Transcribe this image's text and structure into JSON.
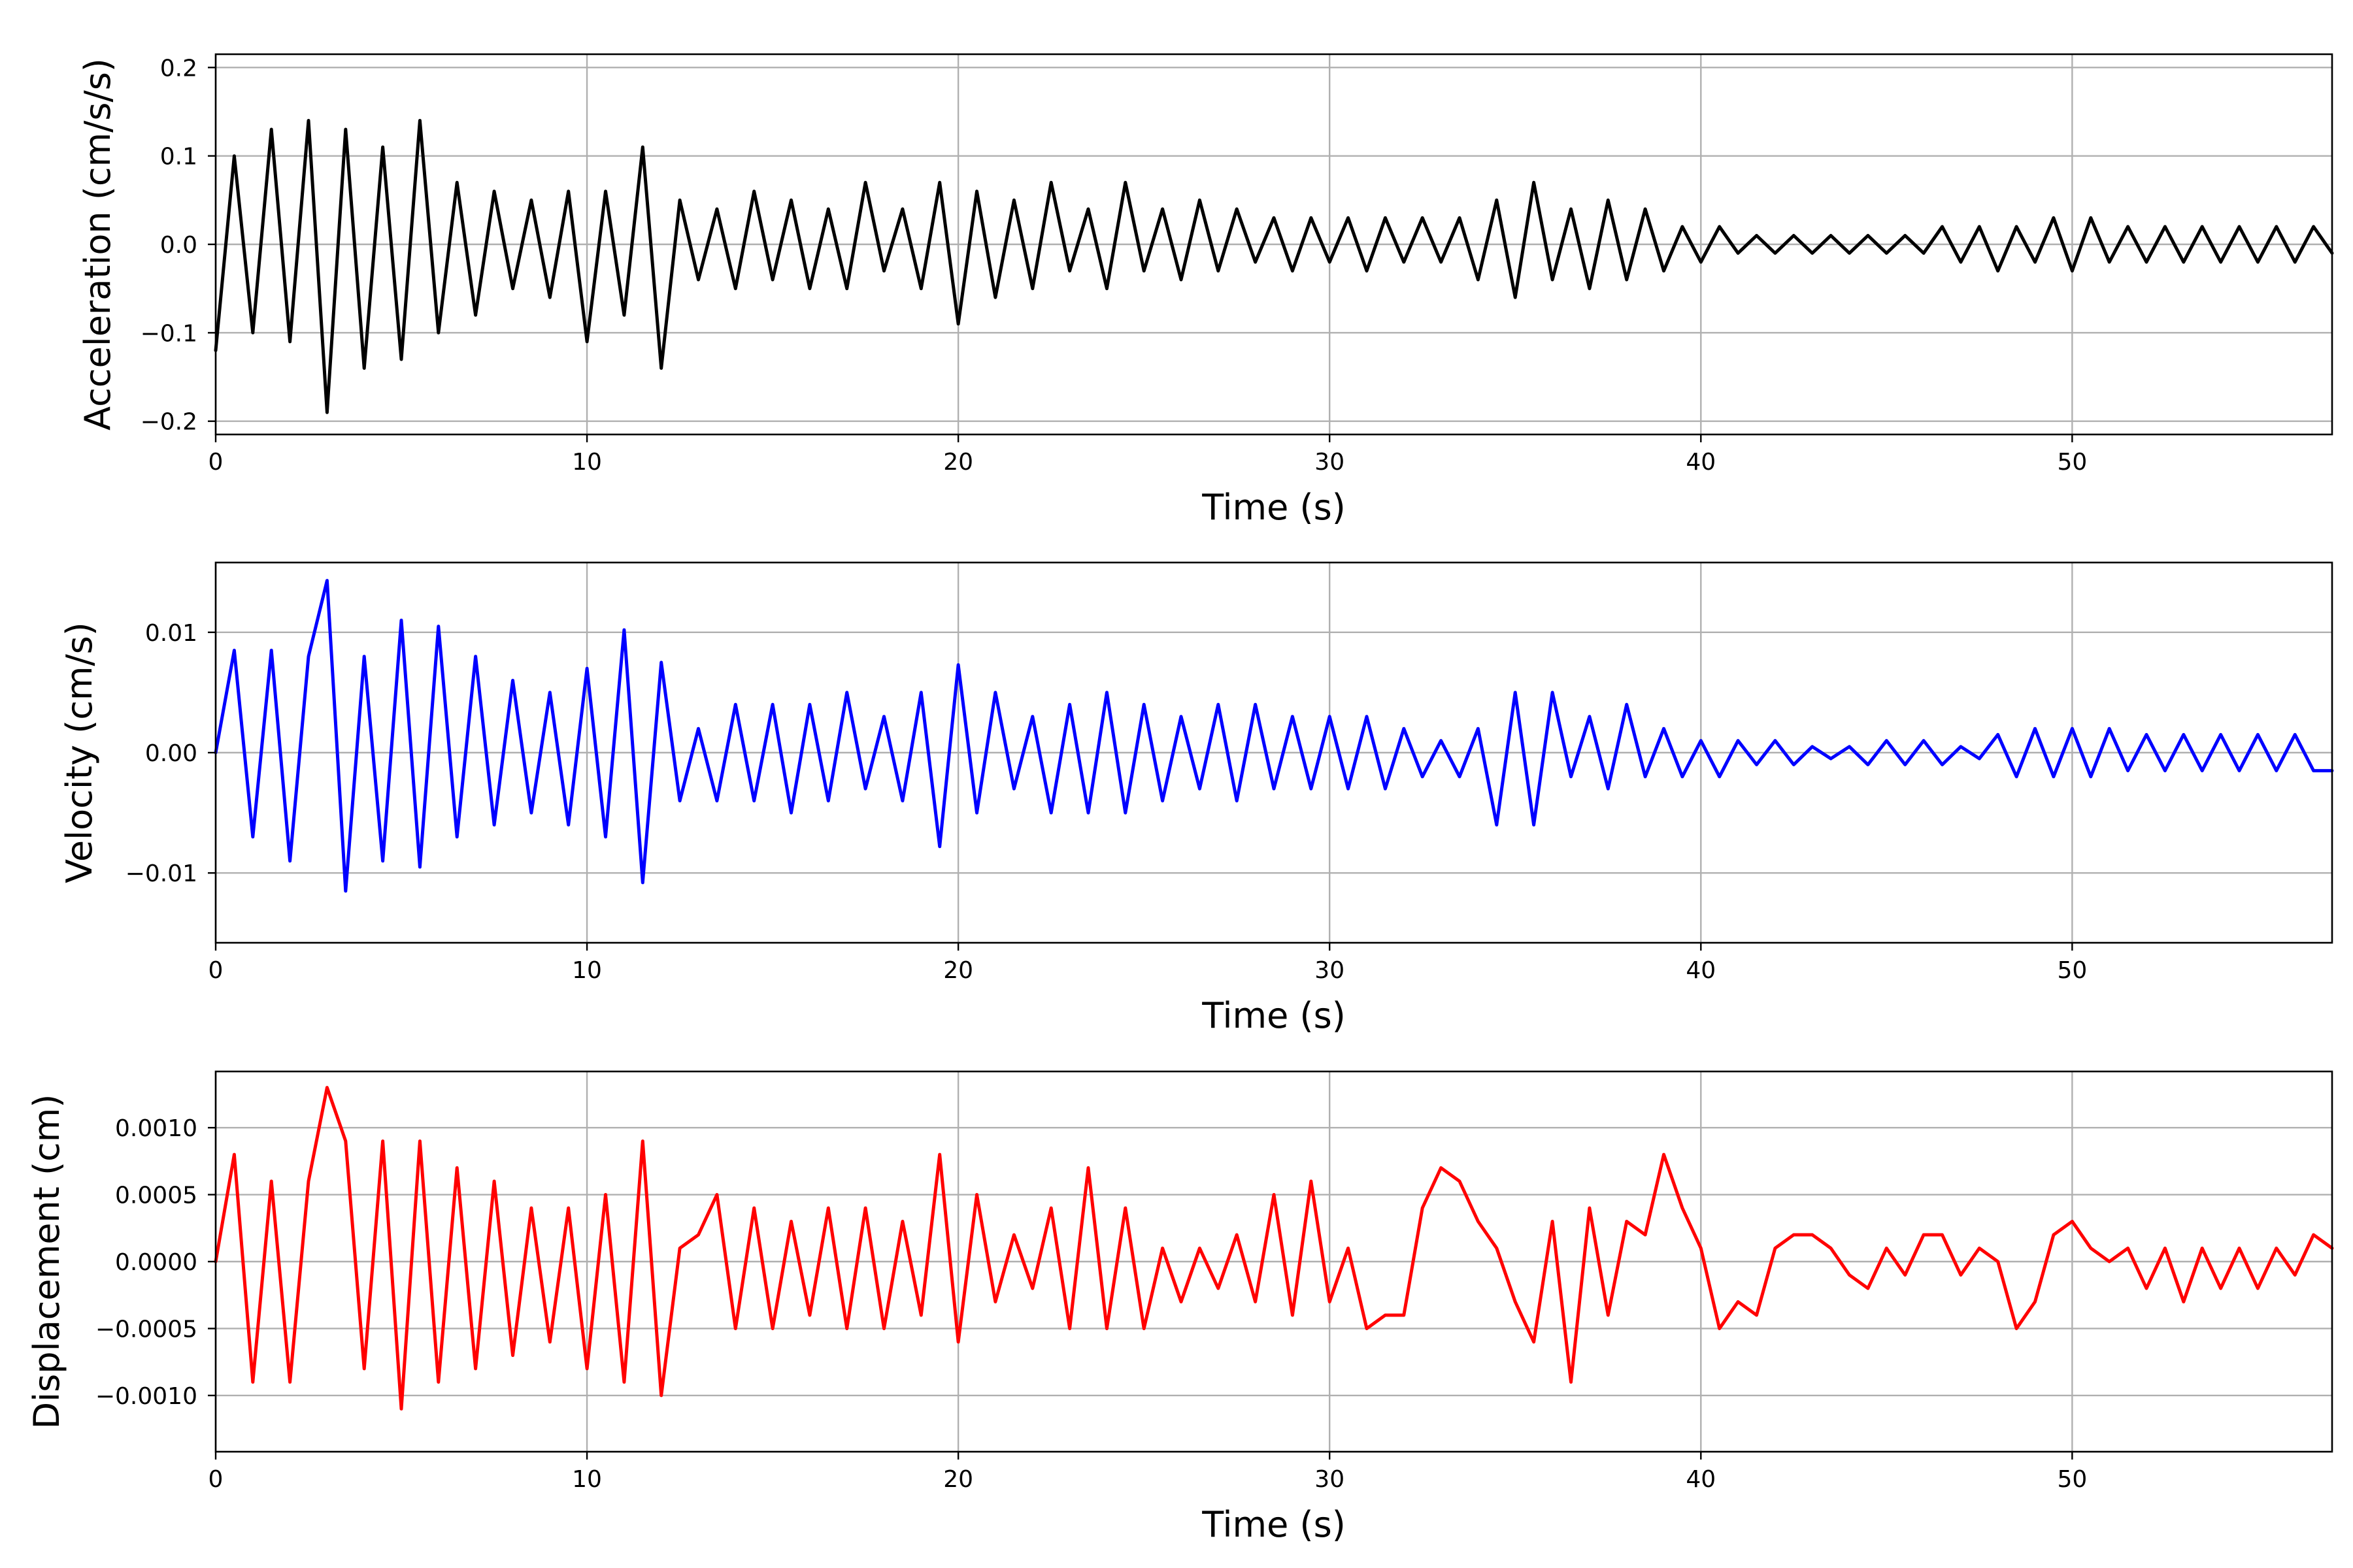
{
  "chart_data": [
    {
      "type": "line",
      "title": "",
      "xlabel": "Time (s)",
      "ylabel": "Acceleration (cm/s/s)",
      "xlim": [
        0,
        57
      ],
      "ylim": [
        -0.215,
        0.215
      ],
      "xticks": [
        0,
        10,
        20,
        30,
        40,
        50
      ],
      "xtick_labels": [
        "0",
        "10",
        "20",
        "30",
        "40",
        "50"
      ],
      "yticks": [
        -0.2,
        -0.1,
        0.0,
        0.1,
        0.2
      ],
      "ytick_labels": [
        "−0.2",
        "−0.1",
        "0.0",
        "0.1",
        "0.2"
      ],
      "grid": true,
      "color": "#000000",
      "series": [
        {
          "name": "Acceleration",
          "x": [
            0,
            0.5,
            1,
            1.5,
            2,
            2.5,
            3,
            3.5,
            4,
            4.5,
            5,
            5.5,
            6,
            6.5,
            7,
            7.5,
            8,
            8.5,
            9,
            9.5,
            10,
            10.5,
            11,
            11.5,
            12,
            12.5,
            13,
            13.5,
            14,
            14.5,
            15,
            15.5,
            16,
            16.5,
            17,
            17.5,
            18,
            18.5,
            19,
            19.5,
            20,
            20.5,
            21,
            21.5,
            22,
            22.5,
            23,
            23.5,
            24,
            24.5,
            25,
            25.5,
            26,
            26.5,
            27,
            27.5,
            28,
            28.5,
            29,
            29.5,
            30,
            30.5,
            31,
            31.5,
            32,
            32.5,
            33,
            33.5,
            34,
            34.5,
            35,
            35.5,
            36,
            36.5,
            37,
            37.5,
            38,
            38.5,
            39,
            39.5,
            40,
            40.5,
            41,
            41.5,
            42,
            42.5,
            43,
            43.5,
            44,
            44.5,
            45,
            45.5,
            46,
            46.5,
            47,
            47.5,
            48,
            48.5,
            49,
            49.5,
            50,
            50.5,
            51,
            51.5,
            52,
            52.5,
            53,
            53.5,
            54,
            54.5,
            55,
            55.5,
            56,
            56.5,
            57
          ],
          "y": [
            -0.12,
            0.1,
            -0.1,
            0.13,
            -0.11,
            0.14,
            -0.19,
            0.13,
            -0.14,
            0.11,
            -0.13,
            0.14,
            -0.1,
            0.07,
            -0.08,
            0.06,
            -0.05,
            0.05,
            -0.06,
            0.06,
            -0.11,
            0.06,
            -0.08,
            0.11,
            -0.14,
            0.05,
            -0.04,
            0.04,
            -0.05,
            0.06,
            -0.04,
            0.05,
            -0.05,
            0.04,
            -0.05,
            0.07,
            -0.03,
            0.04,
            -0.05,
            0.07,
            -0.09,
            0.06,
            -0.06,
            0.05,
            -0.05,
            0.07,
            -0.03,
            0.04,
            -0.05,
            0.07,
            -0.03,
            0.04,
            -0.04,
            0.05,
            -0.03,
            0.04,
            -0.02,
            0.03,
            -0.03,
            0.03,
            -0.02,
            0.03,
            -0.03,
            0.03,
            -0.02,
            0.03,
            -0.02,
            0.03,
            -0.04,
            0.05,
            -0.06,
            0.07,
            -0.04,
            0.04,
            -0.05,
            0.05,
            -0.04,
            0.04,
            -0.03,
            0.02,
            -0.02,
            0.02,
            -0.01,
            0.01,
            -0.01,
            0.01,
            -0.01,
            0.01,
            -0.01,
            0.01,
            -0.01,
            0.01,
            -0.01,
            0.02,
            -0.02,
            0.02,
            -0.03,
            0.02,
            -0.02,
            0.03,
            -0.03,
            0.03,
            -0.02,
            0.02,
            -0.02,
            0.02,
            -0.02,
            0.02,
            -0.02,
            0.02,
            -0.02,
            0.02,
            -0.02,
            0.02,
            -0.01
          ]
        }
      ]
    },
    {
      "type": "line",
      "title": "",
      "xlabel": "Time (s)",
      "ylabel": "Velocity (cm/s)",
      "xlim": [
        0,
        57
      ],
      "ylim": [
        -0.0158,
        0.0158
      ],
      "xticks": [
        0,
        10,
        20,
        30,
        40,
        50
      ],
      "xtick_labels": [
        "0",
        "10",
        "20",
        "30",
        "40",
        "50"
      ],
      "yticks": [
        -0.01,
        0.0,
        0.01
      ],
      "ytick_labels": [
        "−0.01",
        "0.00",
        "0.01"
      ],
      "grid": true,
      "color": "#0000ff",
      "series": [
        {
          "name": "Velocity",
          "x": [
            0,
            0.5,
            1,
            1.5,
            2,
            2.5,
            3,
            3.5,
            4,
            4.5,
            5,
            5.5,
            6,
            6.5,
            7,
            7.5,
            8,
            8.5,
            9,
            9.5,
            10,
            10.5,
            11,
            11.5,
            12,
            12.5,
            13,
            13.5,
            14,
            14.5,
            15,
            15.5,
            16,
            16.5,
            17,
            17.5,
            18,
            18.5,
            19,
            19.5,
            20,
            20.5,
            21,
            21.5,
            22,
            22.5,
            23,
            23.5,
            24,
            24.5,
            25,
            25.5,
            26,
            26.5,
            27,
            27.5,
            28,
            28.5,
            29,
            29.5,
            30,
            30.5,
            31,
            31.5,
            32,
            32.5,
            33,
            33.5,
            34,
            34.5,
            35,
            35.5,
            36,
            36.5,
            37,
            37.5,
            38,
            38.5,
            39,
            39.5,
            40,
            40.5,
            41,
            41.5,
            42,
            42.5,
            43,
            43.5,
            44,
            44.5,
            45,
            45.5,
            46,
            46.5,
            47,
            47.5,
            48,
            48.5,
            49,
            49.5,
            50,
            50.5,
            51,
            51.5,
            52,
            52.5,
            53,
            53.5,
            54,
            54.5,
            55,
            55.5,
            56,
            56.5,
            57
          ],
          "y": [
            0.0,
            0.0085,
            -0.007,
            0.0085,
            -0.009,
            0.008,
            0.0143,
            -0.0115,
            0.008,
            -0.009,
            0.011,
            -0.0095,
            0.0105,
            -0.007,
            0.008,
            -0.006,
            0.006,
            -0.005,
            0.005,
            -0.006,
            0.007,
            -0.007,
            0.0102,
            -0.0108,
            0.0075,
            -0.004,
            0.002,
            -0.004,
            0.004,
            -0.004,
            0.004,
            -0.005,
            0.004,
            -0.004,
            0.005,
            -0.003,
            0.003,
            -0.004,
            0.005,
            -0.0078,
            0.0073,
            -0.005,
            0.005,
            -0.003,
            0.003,
            -0.005,
            0.004,
            -0.005,
            0.005,
            -0.005,
            0.004,
            -0.004,
            0.003,
            -0.003,
            0.004,
            -0.004,
            0.004,
            -0.003,
            0.003,
            -0.003,
            0.003,
            -0.003,
            0.003,
            -0.003,
            0.002,
            -0.002,
            0.001,
            -0.002,
            0.002,
            -0.006,
            0.005,
            -0.006,
            0.005,
            -0.002,
            0.003,
            -0.003,
            0.004,
            -0.002,
            0.002,
            -0.002,
            0.001,
            -0.002,
            0.001,
            -0.001,
            0.001,
            -0.001,
            0.0005,
            -0.0005,
            0.0005,
            -0.001,
            0.001,
            -0.001,
            0.001,
            -0.001,
            0.0005,
            -0.0005,
            0.0015,
            -0.002,
            0.002,
            -0.002,
            0.002,
            -0.002,
            0.002,
            -0.0015,
            0.0015,
            -0.0015,
            0.0015,
            -0.0015,
            0.0015,
            -0.0015,
            0.0015,
            -0.0015,
            0.0015,
            -0.0015,
            -0.0015
          ]
        }
      ]
    },
    {
      "type": "line",
      "title": "",
      "xlabel": "Time (s)",
      "ylabel": "Displacement (cm)",
      "xlim": [
        0,
        57
      ],
      "ylim": [
        -0.00142,
        0.00142
      ],
      "xticks": [
        0,
        10,
        20,
        30,
        40,
        50
      ],
      "xtick_labels": [
        "0",
        "10",
        "20",
        "30",
        "40",
        "50"
      ],
      "yticks": [
        -0.001,
        -0.0005,
        0.0,
        0.0005,
        0.001
      ],
      "ytick_labels": [
        "−0.0010",
        "−0.0005",
        "0.0000",
        "0.0005",
        "0.0010"
      ],
      "grid": true,
      "color": "#ff0000",
      "series": [
        {
          "name": "Displacement",
          "x": [
            0,
            0.5,
            1,
            1.5,
            2,
            2.5,
            3,
            3.5,
            4,
            4.5,
            5,
            5.5,
            6,
            6.5,
            7,
            7.5,
            8,
            8.5,
            9,
            9.5,
            10,
            10.5,
            11,
            11.5,
            12,
            12.5,
            13,
            13.5,
            14,
            14.5,
            15,
            15.5,
            16,
            16.5,
            17,
            17.5,
            18,
            18.5,
            19,
            19.5,
            20,
            20.5,
            21,
            21.5,
            22,
            22.5,
            23,
            23.5,
            24,
            24.5,
            25,
            25.5,
            26,
            26.5,
            27,
            27.5,
            28,
            28.5,
            29,
            29.5,
            30,
            30.5,
            31,
            31.5,
            32,
            32.5,
            33,
            33.5,
            34,
            34.5,
            35,
            35.5,
            36,
            36.5,
            37,
            37.5,
            38,
            38.5,
            39,
            39.5,
            40,
            40.5,
            41,
            41.5,
            42,
            42.5,
            43,
            43.5,
            44,
            44.5,
            45,
            45.5,
            46,
            46.5,
            47,
            47.5,
            48,
            48.5,
            49,
            49.5,
            50,
            50.5,
            51,
            51.5,
            52,
            52.5,
            53,
            53.5,
            54,
            54.5,
            55,
            55.5,
            56,
            56.5,
            57
          ],
          "y": [
            0.0,
            0.0008,
            -0.0009,
            0.0006,
            -0.0009,
            0.0006,
            0.0013,
            0.0009,
            -0.0008,
            0.0009,
            -0.0011,
            0.0009,
            -0.0009,
            0.0007,
            -0.0008,
            0.0006,
            -0.0007,
            0.0004,
            -0.0006,
            0.0004,
            -0.0008,
            0.0005,
            -0.0009,
            0.0009,
            -0.001,
            0.0001,
            0.0002,
            0.0005,
            -0.0005,
            0.0004,
            -0.0005,
            0.0003,
            -0.0004,
            0.0004,
            -0.0005,
            0.0004,
            -0.0005,
            0.0003,
            -0.0004,
            0.0008,
            -0.0006,
            0.0005,
            -0.0003,
            0.0002,
            -0.0002,
            0.0004,
            -0.0005,
            0.0007,
            -0.0005,
            0.0004,
            -0.0005,
            0.0001,
            -0.0003,
            0.0001,
            -0.0002,
            0.0002,
            -0.0003,
            0.0005,
            -0.0004,
            0.0006,
            -0.0003,
            0.0001,
            -0.0005,
            -0.0004,
            -0.0004,
            0.0004,
            0.0007,
            0.0006,
            0.0003,
            0.0001,
            -0.0003,
            -0.0006,
            0.0003,
            -0.0009,
            0.0004,
            -0.0004,
            0.0003,
            0.0002,
            0.0008,
            0.0004,
            0.0001,
            -0.0005,
            -0.0003,
            -0.0004,
            0.0001,
            0.0002,
            0.0002,
            0.0001,
            -0.0001,
            -0.0002,
            0.0001,
            -0.0001,
            0.0002,
            0.0002,
            -0.0001,
            0.0001,
            0.0,
            -0.0005,
            -0.0003,
            0.0002,
            0.0003,
            0.0001,
            0.0,
            0.0001,
            -0.0002,
            0.0001,
            -0.0003,
            0.0001,
            -0.0002,
            0.0001,
            -0.0002,
            0.0001,
            -0.0001,
            0.0002,
            0.0001
          ]
        }
      ]
    }
  ]
}
